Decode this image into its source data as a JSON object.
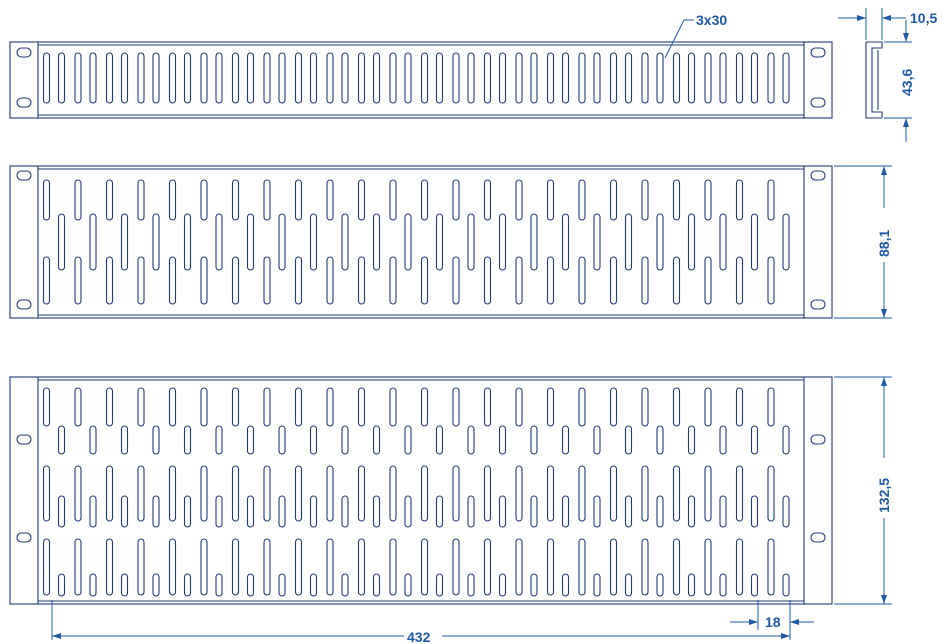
{
  "colors": {
    "outline": "#1f3a78",
    "dimension": "#1f5aa6",
    "background": "#ffffff"
  },
  "panels": [
    {
      "units": "1U",
      "slot_rows": 1
    },
    {
      "units": "2U",
      "slot_rows": 3
    },
    {
      "units": "3U",
      "slot_rows": 5
    }
  ],
  "slot_columns": 24,
  "dimensions": {
    "slot_size": "3x30",
    "side_depth": "10,5",
    "height_1u": "43,6",
    "height_2u": "88,1",
    "height_3u": "132,5",
    "slot_width": "432",
    "slot_pitch": "18"
  }
}
